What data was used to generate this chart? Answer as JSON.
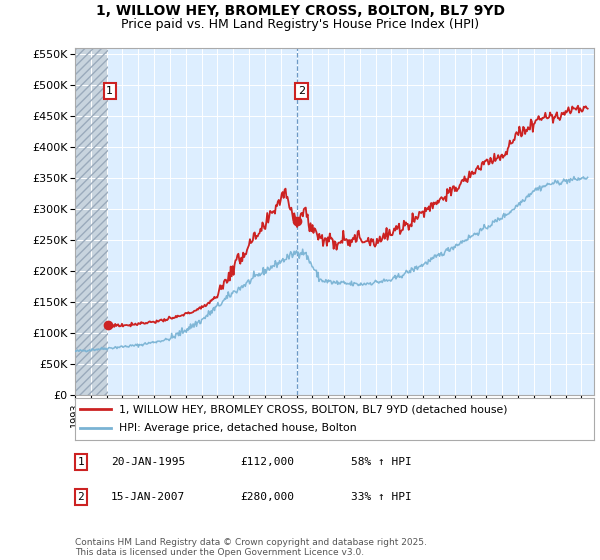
{
  "title": "1, WILLOW HEY, BROMLEY CROSS, BOLTON, BL7 9YD",
  "subtitle": "Price paid vs. HM Land Registry's House Price Index (HPI)",
  "ylim": [
    0,
    560000
  ],
  "yticks": [
    0,
    50000,
    100000,
    150000,
    200000,
    250000,
    300000,
    350000,
    400000,
    450000,
    500000,
    550000
  ],
  "ytick_labels": [
    "£0",
    "£50K",
    "£100K",
    "£150K",
    "£200K",
    "£250K",
    "£300K",
    "£350K",
    "£400K",
    "£450K",
    "£500K",
    "£550K"
  ],
  "hpi_color": "#7ab3d4",
  "price_color": "#cc2222",
  "marker_color": "#cc2222",
  "sale1_date_num": 1995.056,
  "sale1_price": 112000,
  "sale1_label": "1",
  "sale2_date_num": 2007.042,
  "sale2_price": 280000,
  "sale2_label": "2",
  "legend_label_price": "1, WILLOW HEY, BROMLEY CROSS, BOLTON, BL7 9YD (detached house)",
  "legend_label_hpi": "HPI: Average price, detached house, Bolton",
  "table_rows": [
    [
      "1",
      "20-JAN-1995",
      "£112,000",
      "58% ↑ HPI"
    ],
    [
      "2",
      "15-JAN-2007",
      "£280,000",
      "33% ↑ HPI"
    ]
  ],
  "footnote": "Contains HM Land Registry data © Crown copyright and database right 2025.\nThis data is licensed under the Open Government Licence v3.0.",
  "plot_bg_color": "#ddeeff",
  "hatch_color": "#c0c8d0",
  "grid_color": "#ffffff",
  "title_fontsize": 10,
  "subtitle_fontsize": 9
}
